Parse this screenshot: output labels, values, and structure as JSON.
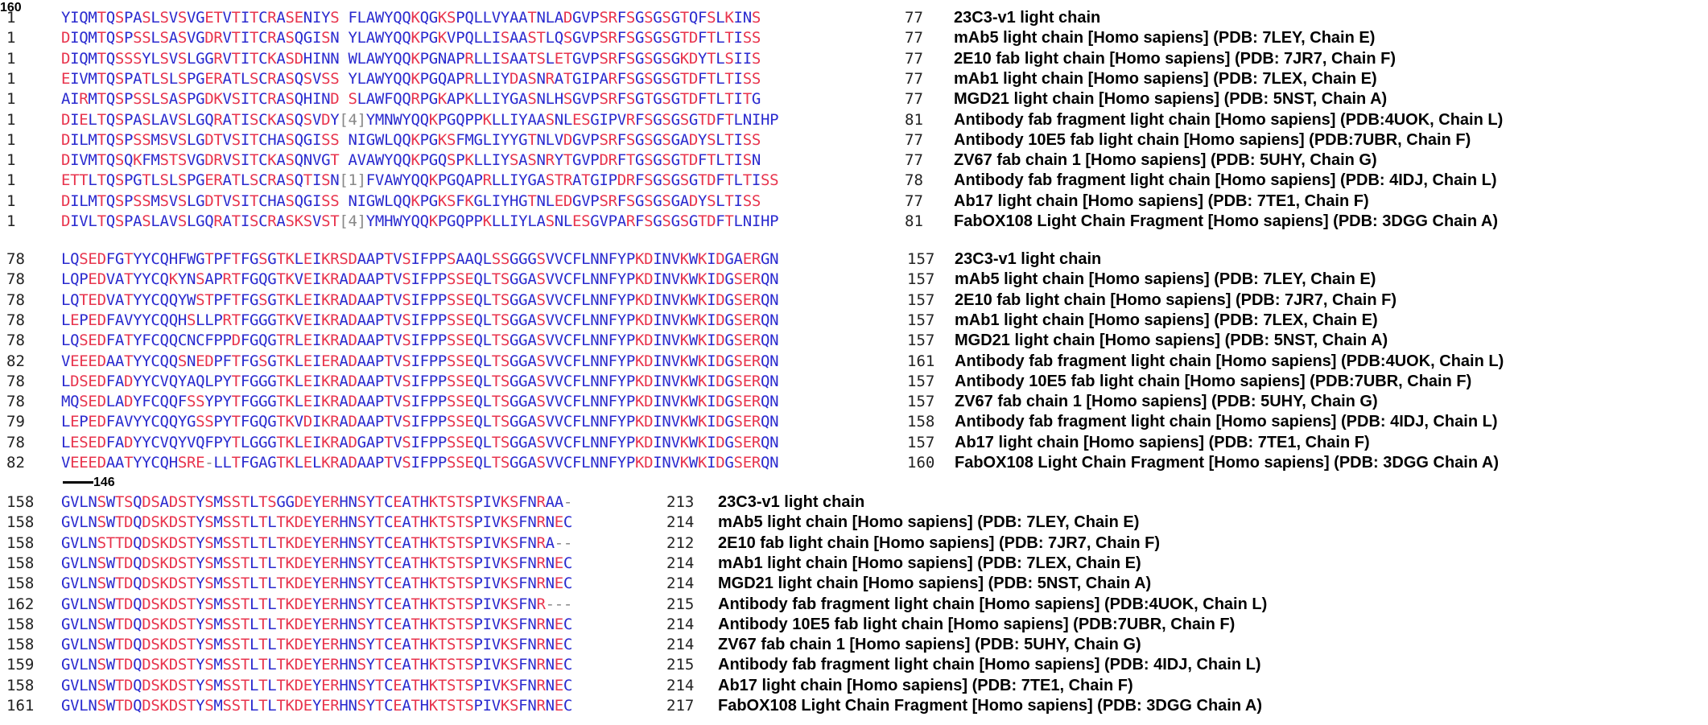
{
  "alignment": {
    "labels": [
      "23C3-v1 light chain",
      "mAb5 light chain [Homo sapiens] (PDB: 7LEY, Chain E)",
      "2E10 fab light chain [Homo sapiens] (PDB: 7JR7, Chain F)",
      "mAb1 light chain [Homo sapiens] (PDB: 7LEX, Chain E)",
      "MGD21 light chain [Homo sapiens] (PDB: 5NST, Chain A)",
      "Antibody fab fragment light chain [Homo sapiens] (PDB:4UOK, Chain L)",
      "Antibody 10E5 fab light chain [Homo sapiens] (PDB:7UBR, Chain F)",
      "ZV67 fab chain 1 [Homo sapiens] (PDB: 5UHY, Chain G)",
      "Antibody fab fragment light chain [Homo sapiens] (PDB: 4IDJ, Chain L)",
      "Ab17 light chain [Homo sapiens] (PDB: 7TE1, Chain F)",
      "FabOX108 Light Chain Fragment [Homo sapiens] (PDB: 3DGG Chain A)"
    ],
    "blocks": [
      {
        "marker": "",
        "starts": [
          "1",
          "1",
          "1",
          "1",
          "1",
          "1",
          "1",
          "1",
          "1",
          "1",
          "1"
        ],
        "ends": [
          "77",
          "77",
          "77",
          "77",
          "77",
          "81",
          "77",
          "77",
          "78",
          "77",
          "81"
        ],
        "seqs": [
          "YIQMTQSPASLSVSVGETVTITCRASENIYS   FLAWYQQKQGKSPQLLVYAATNLADGVPSRFSGSGSGTQFSLKINS",
          "DIQMTQSPSSLSASVGDRVTITCRASQGISN   YLAWYQQKPGKVPQLLISAASTLQSGVPSRFSGSGSGTDFTLTISS",
          "DIQMTQSSSYLSVSLGGRVTITCKASDHINN   WLAWYQQKPGNAPRLLISAATSLETGVPSRFSGSGSGKDYTLSIIS",
          "EIVMTQSPATLSLSPGERATLSCRASQSVSS   YLAWYQQKPGQAPRLLIYDASNRATGIPARFSGSGSGTDFTLTISS",
          "AIRMTQSPSSLSASPGDKVSITCRASQHIND   SLAWFQQRPGKAPKLLIYGASNLHSGVPSRFSGTGSGTDFTLTITG",
          "DIELTQSPASLAVSLGQRATISCKASQSVDY[4]YMNWYQQKPGQPPKLLIYAASNLESGIPVRFSGSGSGTDFTLNIHP",
          "DILMTQSPSSMSVSLGDTVSITCHASQGISS   NIGWLQQKPGKSFMGLIYYGTNLVDGVPSRFSGSGSGADYSLTISS",
          "DIVMTQSQKFMSTSVGDRVSITCKASQNVGT   AVAWYQQKPGQSPKLLIYSASNRYTGVPDRFTGSGSGTDFTLTISN",
          "ETTLTQSPGTLSLSPGERATLSCRASQTISN[1]FVAWYQQKPGQAPRLLIYGASTRATGIPDRFSGSGSGTDFTLTISS",
          "DILMTQSPSSMSVSLGDTVSITCHASQGISS   NIGWLQQKPGKSFKGLIYHGTNLEDGVPSRFSGSGSGADYSLTISS",
          "DIVLTQSPASLAVSLGQRATISCRASKSVST[4]YMHWYQQKPGQPPKLLIYLASNLESGVPARFSGSGSGTDFTLNIHP"
        ]
      },
      {
        "marker": "146",
        "starts": [
          "78",
          "78",
          "78",
          "78",
          "78",
          "82",
          "78",
          "78",
          "79",
          "78",
          "82"
        ],
        "ends": [
          "157",
          "157",
          "157",
          "157",
          "157",
          "161",
          "157",
          "157",
          "158",
          "157",
          "160"
        ],
        "seqs": [
          "LQSEDFGTYYCQHFWGTPFTFGSGTKLEIKRSDAAPTVSIFPPSAAQLSSGGGSVVCFLNNFYPKDINVKWKIDGAERGN",
          "LQPEDVATYYCQKYNSAPRTFGQGTKVEIKRADAAPTVSIFPPSSEQLTSGGASVVCFLNNFYPKDINVKWKIDGSERQN",
          "LQTEDVATYYCQQYWSTPFTFGSGTKLEIKRADAAPTVSIFPPSSEQLTSGGASVVCFLNNFYPKDINVKWKIDGSERQN",
          "LEPEDFAVYYCQQHSLLPRTFGGGTKVEIKRADAAPTVSIFPPSSEQLTSGGASVVCFLNNFYPKDINVKWKIDGSERQN",
          "LQSEDFATYFCQQCNCFPPDFGQGTRLEIKRADAAPTVSIFPPSSEQLTSGGASVVCFLNNFYPKDINVKWKIDGSERQN",
          "VEEEDAATYYCQQSNEDPFTFGSGTKLEIERADAAPTVSIFPPSSEQLTSGGASVVCFLNNFYPKDINVKWKIDGSERQN",
          "LDSEDFADYYCVQYAQLPYTFGGGTKLEIKRADAAPTVSIFPPSSEQLTSGGASVVCFLNNFYPKDINVKWKIDGSERQN",
          "MQSEDLADYFCQQFSSYPYTFGGGTKLEIKRADAAPTVSIFPPSSEQLTSGGASVVCFLNNFYPKDINVKWKIDGSERQN",
          "LEPEDFAVYYCQQYGSSPYTFGQGTKVDIKRADAAPTVSIFPPSSEQLTSGGASVVCFLNNFYPKDINVKWKIDGSERQN",
          "LESEDFADYYCVQYVQFPYTLGGGTKLEIKRADGAPTVSIFPPSSEQLTSGGASVVCFLNNFYPKDINVKWKIDGSERQN",
          "VEEEDAATYYCQHSRE-LLTFGAGTKLELKRADAAPTVSIFPPSSEQLTSGGASVVCFLNNFYPKDINVKWKIDGSERQN"
        ]
      },
      {
        "marker": "160",
        "starts": [
          "158",
          "158",
          "158",
          "158",
          "158",
          "162",
          "158",
          "158",
          "159",
          "158",
          "161"
        ],
        "ends": [
          "213",
          "214",
          "212",
          "214",
          "214",
          "215",
          "214",
          "214",
          "215",
          "214",
          "217"
        ],
        "seqs": [
          "GVLNSWTSQDSADSTYSMSSTLTSGGDEYERHNSYTCEATHKTSTSPIVKSFNRAA-",
          "GVLNSWTDQDSKDSTYSMSSTLTLTKDEYERHNSYTCEATHKTSTSPIVKSFNRNEC",
          "GVLNSTTDQDSKDSTYSMSSTLTLTKDEYERHNSYTCEATHKTSTSPIVKSFNRA--",
          "GVLNSWTDQDSKDSTYSMSSTLTLTKDEYERHNSYTCEATHKTSTSPIVKSFNRNEC",
          "GVLNSWTDQDSKDSTYSMSSTLTLTKDEYERHNSYTCEATHKTSTSPIVKSFNRNEC",
          "GVLNSWTDQDSKDSTYSMSSTLTLTKDEYERHNSYTCEATHKTSTSPIVKSFNR---",
          "GVLNSWTDQDSKDSTYSMSSTLTLTKDEYERHNSYTCEATHKTSTSPIVKSFNRNEC",
          "GVLNSWTDQDSKDSTYSMSSTLTLTKDEYERHNSYTCEATHKTSTSPIVKSFNRNEC",
          "GVLNSWTDQDSKDSTYSMSSTLTLTKDEYERHNSYTCEATHKTSTSPIVKSFNRNEC",
          "GVLNSWTDQDSKDSTYSMSSTLTLTKDEYERHNSYTCEATHKTSTSPIVKSFNRNEC",
          "GVLNSWTDQDSKDSTYSMSSTLTLTKDEYERHNSYTCEATHKTSTSPIVKSFNRNEC"
        ]
      }
    ]
  }
}
